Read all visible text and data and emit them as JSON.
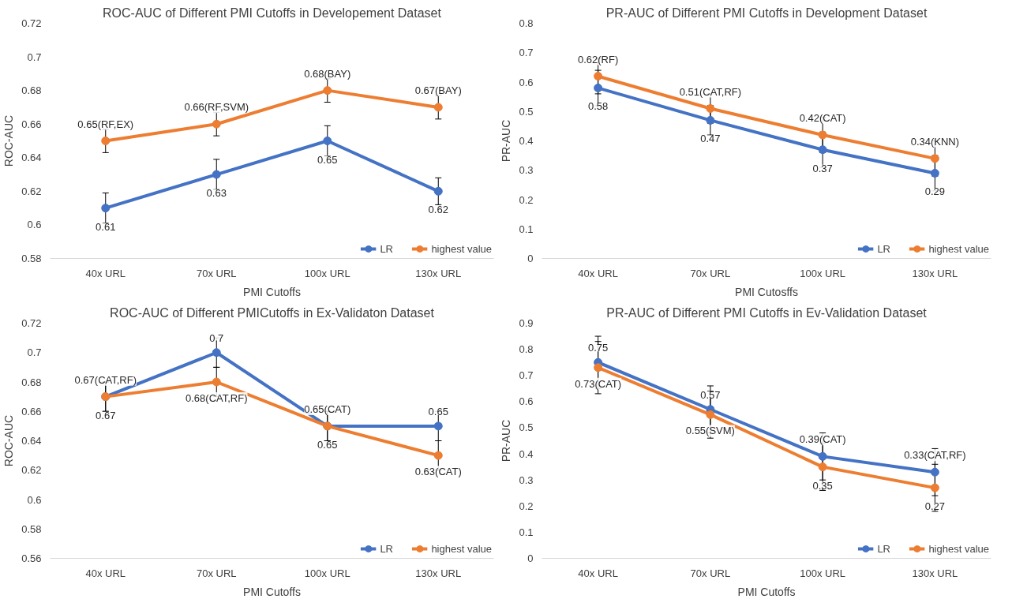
{
  "chart_data": [
    {
      "type": "line",
      "title": "ROC-AUC of Different PMI Cutoffs in Developement Dataset",
      "xlabel": "PMI Cutoffs",
      "ylabel": "ROC-AUC",
      "categories": [
        "40x URL",
        "70x URL",
        "100x URL",
        "130x URL"
      ],
      "ylim": [
        0.58,
        0.72
      ],
      "yticks": [
        0.58,
        0.6,
        0.62,
        0.64,
        0.66,
        0.68,
        0.7,
        0.72
      ],
      "grid": false,
      "legend": "bottom right",
      "marker": "circle",
      "line_style": "solid",
      "series": [
        {
          "name": "LR",
          "color": "#4472c4",
          "values": [
            0.61,
            0.63,
            0.65,
            0.62
          ],
          "errors": [
            0.009,
            0.009,
            0.009,
            0.008
          ],
          "value_labels": [
            "0.61",
            "0.63",
            "0.65",
            "0.62"
          ]
        },
        {
          "name": "highest value",
          "color": "#ed7d31",
          "values": [
            0.65,
            0.66,
            0.68,
            0.67
          ],
          "errors": [
            0.007,
            0.007,
            0.007,
            0.007
          ],
          "value_labels": [
            "0.65(RF,EX)",
            "0.66(RF,SVM)",
            "0.68(BAY)",
            "0.67(BAY)"
          ]
        }
      ]
    },
    {
      "type": "line",
      "title": "PR-AUC of Different PMI Cutoffs in Development Dataset",
      "xlabel": "PMI Cutosffs",
      "ylabel": "PR-AUC",
      "categories": [
        "40x URL",
        "70x URL",
        "100x URL",
        "130x URL"
      ],
      "ylim": [
        0,
        0.8
      ],
      "yticks": [
        0,
        0.1,
        0.2,
        0.3,
        0.4,
        0.5,
        0.6,
        0.7,
        0.8
      ],
      "grid": false,
      "legend": "bottom right",
      "marker": "circle",
      "line_style": "solid",
      "series": [
        {
          "name": "LR",
          "color": "#4472c4",
          "values": [
            0.58,
            0.47,
            0.37,
            0.29
          ],
          "errors": [
            0.06,
            0.05,
            0.06,
            0.06
          ],
          "value_labels": [
            "0.58",
            "0.47",
            "0.37",
            "0.29"
          ]
        },
        {
          "name": "highest value",
          "color": "#ed7d31",
          "values": [
            0.62,
            0.51,
            0.42,
            0.34
          ],
          "errors": [
            0.06,
            0.05,
            0.06,
            0.06
          ],
          "value_labels": [
            "0.62(RF)",
            "0.51(CAT,RF)",
            "0.42(CAT)",
            "0.34(KNN)"
          ]
        }
      ]
    },
    {
      "type": "line",
      "title": "ROC-AUC of Different PMICutoffs in Ex-Validaton Dataset",
      "xlabel": "PMI Cutoffs",
      "ylabel": "ROC-AUC",
      "categories": [
        "40x URL",
        "70x URL",
        "100x URL",
        "130x URL"
      ],
      "ylim": [
        0.56,
        0.72
      ],
      "yticks": [
        0.56,
        0.58,
        0.6,
        0.62,
        0.64,
        0.66,
        0.68,
        0.7,
        0.72
      ],
      "grid": false,
      "legend": "bottom right",
      "marker": "circle",
      "line_style": "solid",
      "series": [
        {
          "name": "LR",
          "color": "#4472c4",
          "values": [
            0.67,
            0.7,
            0.65,
            0.65
          ],
          "errors": [
            0.01,
            0.01,
            0.01,
            0.01
          ],
          "value_labels": [
            "0.67",
            "0.7",
            "0.65",
            "0.65"
          ]
        },
        {
          "name": "highest value",
          "color": "#ed7d31",
          "values": [
            0.67,
            0.68,
            0.65,
            0.63
          ],
          "errors": [
            0.01,
            0.01,
            0.01,
            0.01
          ],
          "value_labels": [
            "0.67(CAT,RF)",
            "0.68(CAT,RF)",
            "0.65(CAT)",
            "0.63(CAT)"
          ]
        }
      ]
    },
    {
      "type": "line",
      "title": "PR-AUC of Different PMI Cutoffs in Ev-Validation Dataset",
      "xlabel": "PMI Cutoffs",
      "ylabel": "PR-AUC",
      "categories": [
        "40x URL",
        "70x URL",
        "100x URL",
        "130x URL"
      ],
      "ylim": [
        0,
        0.9
      ],
      "yticks": [
        0,
        0.1,
        0.2,
        0.3,
        0.4,
        0.5,
        0.6,
        0.7,
        0.8,
        0.9
      ],
      "grid": false,
      "legend": "bottom right",
      "marker": "circle",
      "line_style": "solid",
      "series": [
        {
          "name": "LR",
          "color": "#4472c4",
          "values": [
            0.75,
            0.57,
            0.39,
            0.33
          ],
          "errors": [
            0.1,
            0.09,
            0.09,
            0.09
          ],
          "value_labels": [
            "0.75",
            "0.57",
            "0.39(CAT)",
            "0.33(CAT,RF)"
          ]
        },
        {
          "name": "highest value",
          "color": "#ed7d31",
          "values": [
            0.73,
            0.55,
            0.35,
            0.27
          ],
          "errors": [
            0.1,
            0.09,
            0.09,
            0.09
          ],
          "value_labels": [
            "0.73(CAT)",
            "0.55(SVM)",
            "0.35",
            "0.27"
          ]
        }
      ]
    }
  ]
}
